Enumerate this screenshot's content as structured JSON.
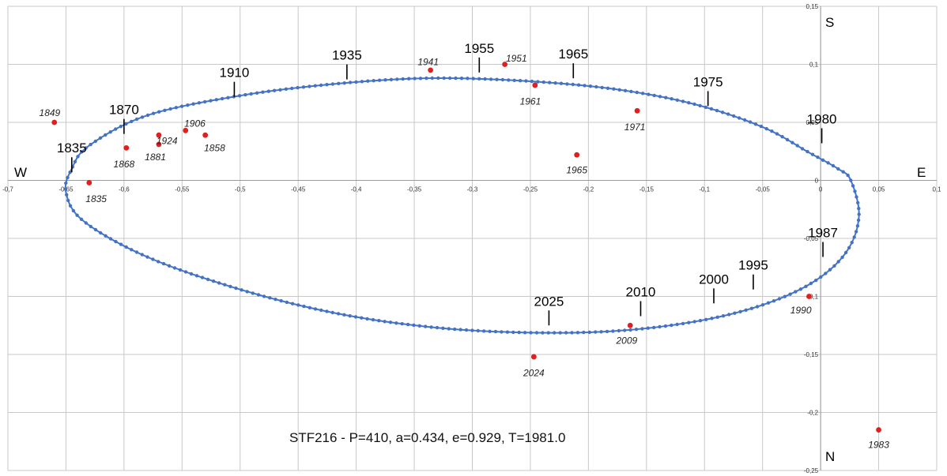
{
  "chart_data": {
    "type": "scatter",
    "title": "STF216 - P=410, a=0.434, e=0.929, T=1981.0",
    "xlim": [
      -0.7,
      0.1
    ],
    "ylim": [
      -0.25,
      0.15
    ],
    "y_inverted": true,
    "grid": true,
    "x_ticks": [
      {
        "v": -0.7,
        "t": "-0,7"
      },
      {
        "v": -0.65,
        "t": "-0,65"
      },
      {
        "v": -0.6,
        "t": "-0,6"
      },
      {
        "v": -0.55,
        "t": "-0,55"
      },
      {
        "v": -0.5,
        "t": "-0,5"
      },
      {
        "v": -0.45,
        "t": "-0,45"
      },
      {
        "v": -0.4,
        "t": "-0,4"
      },
      {
        "v": -0.35,
        "t": "-0,35"
      },
      {
        "v": -0.3,
        "t": "-0,3"
      },
      {
        "v": -0.25,
        "t": "-0,25"
      },
      {
        "v": -0.2,
        "t": "-0,2"
      },
      {
        "v": -0.15,
        "t": "-0,15"
      },
      {
        "v": -0.1,
        "t": "-0,1"
      },
      {
        "v": -0.05,
        "t": "-0,05"
      },
      {
        "v": 0,
        "t": "0"
      },
      {
        "v": 0.05,
        "t": "0,05"
      },
      {
        "v": 0.1,
        "t": "0,1"
      }
    ],
    "y_ticks": [
      {
        "v": 0.15,
        "t": "0,15"
      },
      {
        "v": 0.1,
        "t": "0,1"
      },
      {
        "v": 0.05,
        "t": "0,05"
      },
      {
        "v": 0,
        "t": "0"
      },
      {
        "v": -0.05,
        "t": "-0,05"
      },
      {
        "v": -0.1,
        "t": "-0,1"
      },
      {
        "v": -0.15,
        "t": "-0,15"
      },
      {
        "v": -0.2,
        "t": "-0,2"
      },
      {
        "v": -0.25,
        "t": "-0,25"
      }
    ],
    "directions": {
      "south": "S",
      "north": "N",
      "west": "W",
      "east": "E"
    },
    "orbit": {
      "color": "#4472c4",
      "ellipse_path": [
        [
          0.026,
          0
        ],
        [
          0.033,
          -0.031
        ],
        [
          0.022,
          -0.062
        ],
        [
          -0.007,
          -0.088
        ],
        [
          -0.052,
          -0.108
        ],
        [
          -0.11,
          -0.122
        ],
        [
          -0.18,
          -0.13
        ],
        [
          -0.26,
          -0.131
        ],
        [
          -0.34,
          -0.126
        ],
        [
          -0.42,
          -0.114
        ],
        [
          -0.5,
          -0.094
        ],
        [
          -0.58,
          -0.066
        ],
        [
          -0.635,
          -0.035
        ],
        [
          -0.65,
          -0.01
        ],
        [
          -0.645,
          0.01
        ],
        [
          -0.63,
          0.03
        ],
        [
          -0.58,
          0.056
        ],
        [
          -0.5,
          0.073
        ],
        [
          -0.42,
          0.083
        ],
        [
          -0.34,
          0.088
        ],
        [
          -0.26,
          0.086
        ],
        [
          -0.18,
          0.079
        ],
        [
          -0.11,
          0.066
        ],
        [
          -0.05,
          0.046
        ],
        [
          -0.01,
          0.024
        ],
        [
          0.015,
          0.01
        ],
        [
          0.026,
          0
        ]
      ]
    },
    "epoch_markers": [
      {
        "label": "1835",
        "x": -0.645,
        "y": 0.007
      },
      {
        "label": "1870",
        "x": -0.6,
        "y": 0.04
      },
      {
        "label": "1910",
        "x": -0.505,
        "y": 0.072
      },
      {
        "label": "1935",
        "x": -0.408,
        "y": 0.087
      },
      {
        "label": "1955",
        "x": -0.294,
        "y": 0.093
      },
      {
        "label": "1965",
        "x": -0.213,
        "y": 0.088
      },
      {
        "label": "1975",
        "x": -0.097,
        "y": 0.064
      },
      {
        "label": "1980",
        "x": 0.001,
        "y": 0.032
      },
      {
        "label": "1987",
        "x": 0.002,
        "y": -0.066
      },
      {
        "label": "1995",
        "x": -0.058,
        "y": -0.094
      },
      {
        "label": "2000",
        "x": -0.092,
        "y": -0.106
      },
      {
        "label": "2010",
        "x": -0.155,
        "y": -0.117
      },
      {
        "label": "2025",
        "x": -0.234,
        "y": -0.125
      }
    ],
    "observations": [
      {
        "label": "1849",
        "x": -0.66,
        "y": 0.05,
        "lx": -0.664,
        "ly": 0.058
      },
      {
        "label": "1835",
        "x": -0.63,
        "y": -0.002,
        "lx": -0.624,
        "ly": -0.016
      },
      {
        "label": "1868",
        "x": -0.598,
        "y": 0.028,
        "lx": -0.6,
        "ly": 0.014
      },
      {
        "label": "1881",
        "x": -0.57,
        "y": 0.031,
        "lx": -0.573,
        "ly": 0.02
      },
      {
        "label": "1924",
        "x": -0.57,
        "y": 0.039,
        "lx": -0.563,
        "ly": 0.034
      },
      {
        "label": "1906",
        "x": -0.547,
        "y": 0.043,
        "lx": -0.539,
        "ly": 0.049
      },
      {
        "label": "1858",
        "x": -0.53,
        "y": 0.039,
        "lx": -0.522,
        "ly": 0.028
      },
      {
        "label": "1941",
        "x": -0.336,
        "y": 0.095,
        "lx": -0.338,
        "ly": 0.102
      },
      {
        "label": "1951",
        "x": -0.272,
        "y": 0.1,
        "lx": -0.262,
        "ly": 0.105
      },
      {
        "label": "1961",
        "x": -0.246,
        "y": 0.082,
        "lx": -0.25,
        "ly": 0.068
      },
      {
        "label": "1971",
        "x": -0.158,
        "y": 0.06,
        "lx": -0.16,
        "ly": 0.046
      },
      {
        "label": "1965",
        "x": -0.21,
        "y": 0.022,
        "lx": -0.21,
        "ly": 0.009
      },
      {
        "label": "1990",
        "x": -0.01,
        "y": -0.1,
        "lx": -0.017,
        "ly": -0.112
      },
      {
        "label": "2009",
        "x": -0.164,
        "y": -0.125,
        "lx": -0.167,
        "ly": -0.138
      },
      {
        "label": "2024",
        "x": -0.247,
        "y": -0.152,
        "lx": -0.247,
        "ly": -0.166
      },
      {
        "label": "1983",
        "x": 0.05,
        "y": -0.215,
        "lx": 0.05,
        "ly": -0.228
      }
    ],
    "observation_color": "#e0201f"
  }
}
